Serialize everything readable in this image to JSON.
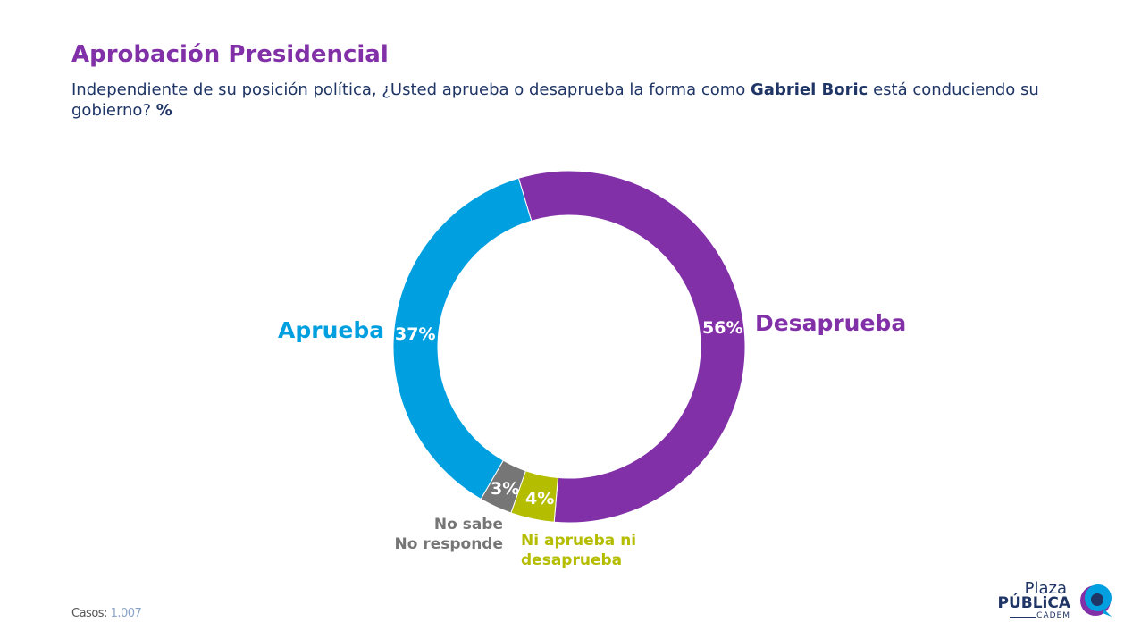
{
  "header": {
    "title": "Aprobación Presidencial",
    "subtitle_pre": "Independiente de su posición política, ¿Usted aprueba o desaprueba la forma como ",
    "subtitle_bold": "Gabriel Boric",
    "subtitle_post": " está conduciendo su gobierno? ",
    "subtitle_unit": "%"
  },
  "chart_data": {
    "type": "pie",
    "donut": true,
    "slices": [
      {
        "name": "Desaprueba",
        "value": 56,
        "label": "56%",
        "color": "#8230A8"
      },
      {
        "name": "Ni aprueba ni desaprueba",
        "value": 4,
        "label": "4%",
        "color": "#B5BD00"
      },
      {
        "name": "No sabe No responde",
        "value": 3,
        "label": "3%",
        "color": "#767676"
      },
      {
        "name": "Aprueba",
        "value": 37,
        "label": "37%",
        "color": "#009FDF"
      }
    ],
    "category_labels": {
      "desaprueba": "Desaprueba",
      "ni_line1": "Ni aprueba ni",
      "ni_line2": "desaprueba",
      "ns_line1": "No sabe",
      "ns_line2": "No responde",
      "aprueba": "Aprueba"
    }
  },
  "footer": {
    "casos_label": "Casos",
    "casos_value": "1.007"
  },
  "logo": {
    "line1": "Plaza",
    "line2": "PÚBLiCA",
    "line3": "CADEM"
  }
}
